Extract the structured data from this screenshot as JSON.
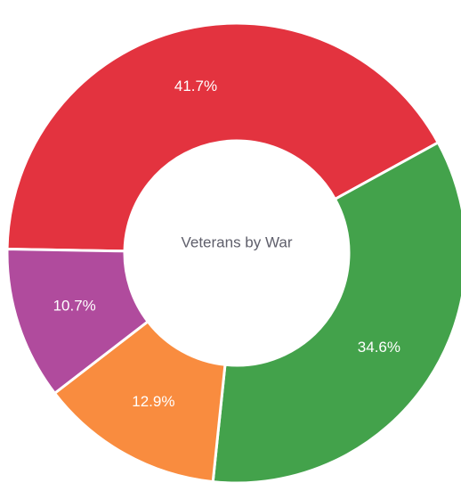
{
  "chart_data": {
    "type": "pie",
    "title": "Veterans by War",
    "slices": [
      {
        "label": "41.7%",
        "value": 41.7,
        "color": "#e3333f"
      },
      {
        "label": "34.6%",
        "value": 34.6,
        "color": "#43a24b"
      },
      {
        "label": "12.9%",
        "value": 12.9,
        "color": "#f98c3f"
      },
      {
        "label": "10.7%",
        "value": 10.7,
        "color": "#b04b9d"
      }
    ]
  }
}
